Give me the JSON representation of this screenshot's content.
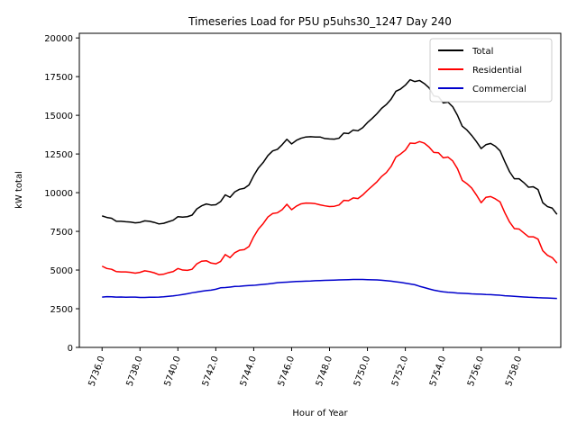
{
  "chart_data": {
    "type": "line",
    "title": "Timeseries Load for P5U p5uhs30_1247  Day 240",
    "xlabel": "Hour of Year",
    "ylabel": "kW total",
    "xlim": [
      5734.8,
      5760.2
    ],
    "ylim": [
      0,
      20300
    ],
    "x_ticks": [
      5736,
      5738,
      5740,
      5742,
      5744,
      5746,
      5748,
      5750,
      5752,
      5754,
      5756,
      5758
    ],
    "x_tick_labels": [
      "5736.0",
      "5738.0",
      "5740.0",
      "5742.0",
      "5744.0",
      "5746.0",
      "5748.0",
      "5750.0",
      "5752.0",
      "5754.0",
      "5756.0",
      "5758.0"
    ],
    "y_ticks": [
      0,
      2500,
      5000,
      7500,
      10000,
      12500,
      15000,
      17500,
      20000
    ],
    "y_tick_labels": [
      "0",
      "2500",
      "5000",
      "7500",
      "10000",
      "12500",
      "15000",
      "17500",
      "20000"
    ],
    "legend_position": "top-right",
    "x_start": 5736.0,
    "x_step": 0.25,
    "series": [
      {
        "name": "Total",
        "color": "#000000",
        "values": [
          8500,
          8400,
          8350,
          8150,
          8150,
          8120,
          8100,
          8050,
          8080,
          8180,
          8150,
          8080,
          7980,
          8020,
          8120,
          8220,
          8450,
          8420,
          8450,
          8550,
          8950,
          9150,
          9270,
          9200,
          9220,
          9420,
          9860,
          9700,
          10050,
          10220,
          10280,
          10500,
          11100,
          11600,
          11950,
          12400,
          12700,
          12800,
          13100,
          13450,
          13150,
          13380,
          13520,
          13600,
          13620,
          13600,
          13600,
          13500,
          13470,
          13460,
          13520,
          13850,
          13820,
          14050,
          14000,
          14200,
          14530,
          14800,
          15100,
          15450,
          15700,
          16050,
          16550,
          16700,
          16950,
          17300,
          17180,
          17250,
          17050,
          16780,
          16250,
          16200,
          15800,
          15850,
          15550,
          15000,
          14300,
          14050,
          13700,
          13300,
          12850,
          13100,
          13180,
          13000,
          12700,
          12000,
          11350,
          10900,
          10900,
          10650,
          10350,
          10380,
          10200,
          9350,
          9100,
          9000,
          8600
        ]
      },
      {
        "name": "Residential",
        "color": "#ff0000",
        "values": [
          5250,
          5100,
          5050,
          4900,
          4880,
          4880,
          4850,
          4800,
          4850,
          4950,
          4900,
          4820,
          4700,
          4730,
          4830,
          4900,
          5100,
          5000,
          4980,
          5050,
          5400,
          5570,
          5600,
          5450,
          5400,
          5550,
          6000,
          5800,
          6120,
          6280,
          6320,
          6520,
          7150,
          7650,
          8000,
          8430,
          8650,
          8700,
          8900,
          9250,
          8900,
          9130,
          9280,
          9330,
          9320,
          9290,
          9210,
          9150,
          9100,
          9120,
          9200,
          9500,
          9480,
          9660,
          9620,
          9850,
          10150,
          10420,
          10700,
          11050,
          11300,
          11700,
          12300,
          12500,
          12750,
          13200,
          13180,
          13300,
          13200,
          12950,
          12600,
          12580,
          12250,
          12300,
          12050,
          11550,
          10800,
          10580,
          10300,
          9850,
          9350,
          9700,
          9750,
          9600,
          9400,
          8700,
          8100,
          7680,
          7650,
          7400,
          7150,
          7150,
          7000,
          6250,
          5950,
          5800,
          5450
        ]
      },
      {
        "name": "Commercial",
        "color": "#0000cc",
        "values": [
          3250,
          3280,
          3270,
          3250,
          3260,
          3240,
          3250,
          3250,
          3230,
          3230,
          3240,
          3240,
          3250,
          3270,
          3300,
          3330,
          3370,
          3420,
          3470,
          3530,
          3580,
          3630,
          3670,
          3700,
          3760,
          3850,
          3870,
          3900,
          3940,
          3950,
          3980,
          4000,
          4010,
          4040,
          4070,
          4100,
          4140,
          4180,
          4200,
          4220,
          4240,
          4260,
          4270,
          4280,
          4290,
          4310,
          4320,
          4330,
          4340,
          4350,
          4360,
          4370,
          4380,
          4390,
          4390,
          4390,
          4380,
          4370,
          4360,
          4340,
          4310,
          4280,
          4240,
          4200,
          4150,
          4100,
          4050,
          3950,
          3870,
          3780,
          3700,
          3640,
          3590,
          3560,
          3540,
          3510,
          3500,
          3480,
          3460,
          3450,
          3440,
          3420,
          3410,
          3390,
          3370,
          3340,
          3320,
          3300,
          3280,
          3260,
          3240,
          3230,
          3210,
          3200,
          3190,
          3180,
          3160
        ]
      }
    ]
  }
}
